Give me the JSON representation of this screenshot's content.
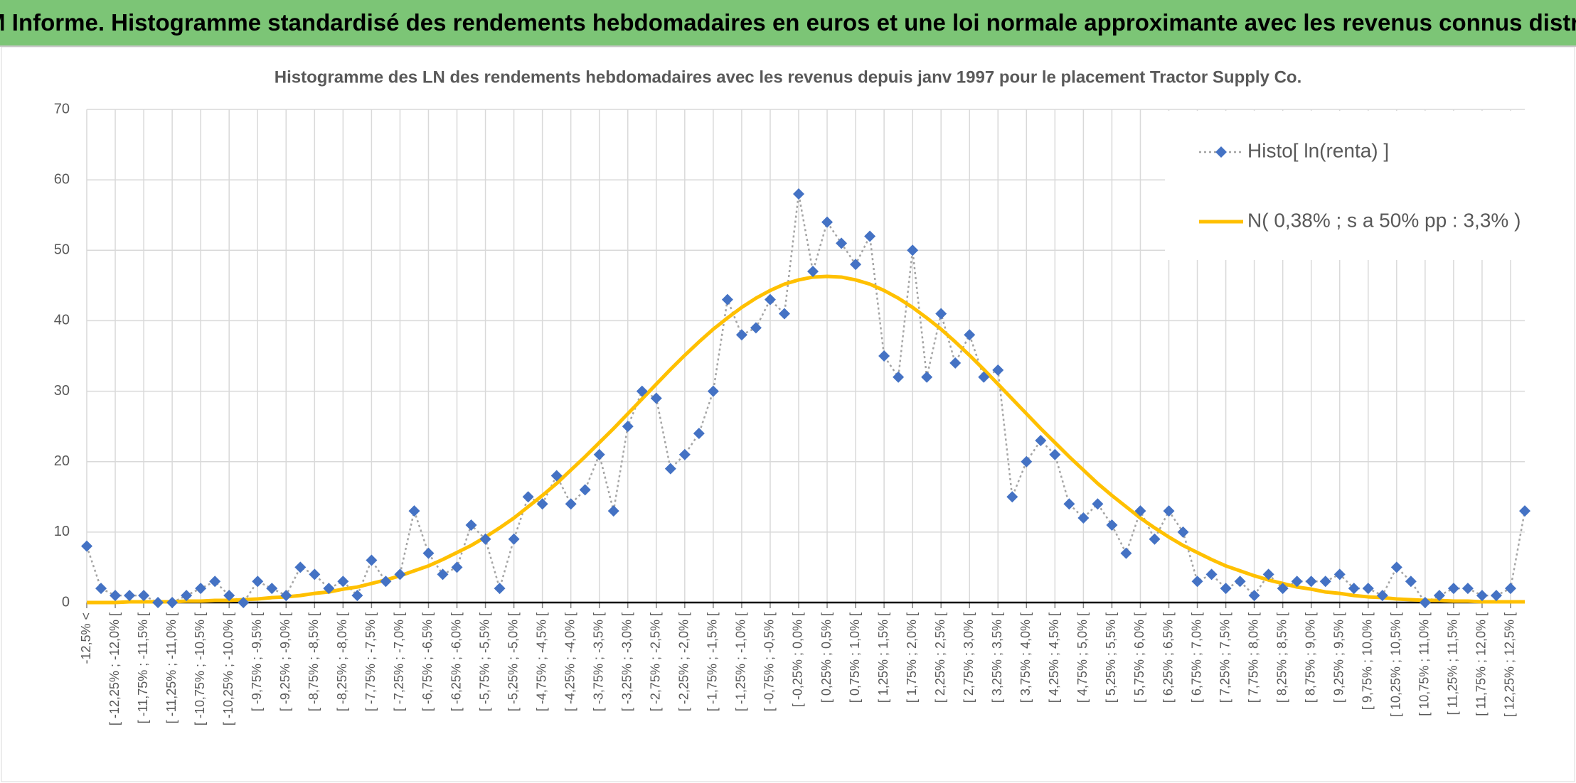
{
  "header": {
    "title": "ADAM Informe. Histogramme standardisé des rendements hebdomadaires en euros et une loi normale approximante avec les revenus connus distribués"
  },
  "chart_data": {
    "type": "line",
    "title": "Histogramme des LN des rendements hebdomadaires avec les revenus depuis janv 1997 pour le placement Tractor Supply Co.",
    "categories": [
      "-12,5% <",
      null,
      "[ -12,25% ; -12,0% [",
      null,
      "[ -11,75% ; -11,5% [",
      null,
      "[ -11,25% ; -11,0% [",
      null,
      "[ -10,75% ; -10,5% [",
      null,
      "[ -10,25% ; -10,0% [",
      null,
      "[ -9,75% ; -9,5% [",
      null,
      "[ -9,25% ; -9,0% [",
      null,
      "[ -8,75% ; -8,5% [",
      null,
      "[ -8,25% ; -8,0% [",
      null,
      "[ -7,75% ; -7,5% [",
      null,
      "[ -7,25% ; -7,0% [",
      null,
      "[ -6,75% ; -6,5% [",
      null,
      "[ -6,25% ; -6,0% [",
      null,
      "[ -5,75% ; -5,5% [",
      null,
      "[ -5,25% ; -5,0% [",
      null,
      "[ -4,75% ; -4,5% [",
      null,
      "[ -4,25% ; -4,0% [",
      null,
      "[ -3,75% ; -3,5% [",
      null,
      "[ -3,25% ; -3,0% [",
      null,
      "[ -2,75% ; -2,5% [",
      null,
      "[ -2,25% ; -2,0% [",
      null,
      "[ -1,75% ; -1,5% [",
      null,
      "[ -1,25% ; -1,0% [",
      null,
      "[ -0,75% ; -0,5% [",
      null,
      "[ -0,25% ; 0,0% [",
      null,
      "[ 0,25% ; 0,5% [",
      null,
      "[ 0,75% ; 1,0% [",
      null,
      "[ 1,25% ; 1,5% [",
      null,
      "[ 1,75% ; 2,0% [",
      null,
      "[ 2,25% ; 2,5% [",
      null,
      "[ 2,75% ; 3,0% [",
      null,
      "[ 3,25% ; 3,5% [",
      null,
      "[ 3,75% ; 4,0% [",
      null,
      "[ 4,25% ; 4,5% [",
      null,
      "[ 4,75% ; 5,0% [",
      null,
      "[ 5,25% ; 5,5% [",
      null,
      "[ 5,75% ; 6,0% [",
      null,
      "[ 6,25% ; 6,5% [",
      null,
      "[ 6,75% ; 7,0% [",
      null,
      "[ 7,25% ; 7,5% [",
      null,
      "[ 7,75% ; 8,0% [",
      null,
      "[ 8,25% ; 8,5% [",
      null,
      "[ 8,75% ; 9,0% [",
      null,
      "[ 9,25% ; 9,5% [",
      null,
      "[ 9,75% ; 10,0% [",
      null,
      "[ 10,25% ; 10,5% [",
      null,
      "[ 10,75% ; 11,0% [",
      null,
      "[ 11,25% ; 11,5% [",
      null,
      "[ 11,75% ; 12,0% [",
      null,
      "[ 12,25% ; 12,5% [",
      null
    ],
    "series": [
      {
        "name": "Histo[ ln(renta) ]",
        "color": "#4472c4",
        "line_color": "#a5a5a5",
        "values": [
          8,
          2,
          1,
          1,
          1,
          0,
          0,
          1,
          2,
          3,
          1,
          0,
          3,
          2,
          1,
          5,
          4,
          2,
          3,
          1,
          6,
          3,
          4,
          13,
          7,
          4,
          5,
          11,
          9,
          2,
          9,
          15,
          14,
          18,
          14,
          16,
          21,
          13,
          25,
          30,
          29,
          19,
          21,
          24,
          30,
          43,
          38,
          39,
          43,
          41,
          58,
          47,
          54,
          51,
          48,
          52,
          35,
          32,
          50,
          32,
          41,
          34,
          38,
          32,
          33,
          15,
          20,
          23,
          21,
          14,
          12,
          14,
          11,
          7,
          13,
          9,
          13,
          10,
          3,
          4,
          2,
          3,
          1,
          4,
          2,
          3,
          3,
          3,
          4,
          2,
          2,
          1,
          5,
          3,
          0,
          1,
          2,
          2,
          1,
          1,
          2,
          13
        ]
      },
      {
        "name": "N( 0,38% ; s a 50% pp : 3,3% )",
        "color": "#ffc000",
        "values": [
          0.0,
          0.0,
          0.0,
          0.1,
          0.1,
          0.1,
          0.1,
          0.2,
          0.2,
          0.3,
          0.3,
          0.4,
          0.5,
          0.7,
          0.8,
          1.0,
          1.3,
          1.5,
          1.9,
          2.2,
          2.7,
          3.2,
          3.8,
          4.5,
          5.2,
          6.1,
          7.1,
          8.1,
          9.3,
          10.6,
          12.0,
          13.6,
          15.2,
          16.9,
          18.8,
          20.7,
          22.7,
          24.7,
          26.8,
          28.9,
          31.0,
          33.1,
          35.1,
          37.0,
          38.8,
          40.4,
          41.9,
          43.2,
          44.3,
          45.2,
          45.8,
          46.2,
          46.3,
          46.2,
          45.8,
          45.2,
          44.3,
          43.2,
          41.9,
          40.4,
          38.8,
          37.0,
          35.1,
          33.1,
          31.0,
          28.9,
          26.8,
          24.7,
          22.7,
          20.7,
          18.8,
          16.9,
          15.2,
          13.6,
          12.0,
          10.6,
          9.3,
          8.1,
          7.1,
          6.1,
          5.2,
          4.5,
          3.8,
          3.2,
          2.7,
          2.2,
          1.9,
          1.5,
          1.3,
          1.0,
          0.8,
          0.7,
          0.5,
          0.4,
          0.3,
          0.3,
          0.2,
          0.2,
          0.1,
          0.1,
          0.1,
          0.1
        ]
      }
    ],
    "ylim": [
      0,
      70
    ],
    "yticks": [
      0,
      10,
      20,
      30,
      40,
      50,
      60,
      70
    ],
    "grid": true,
    "legend": "upper right"
  }
}
